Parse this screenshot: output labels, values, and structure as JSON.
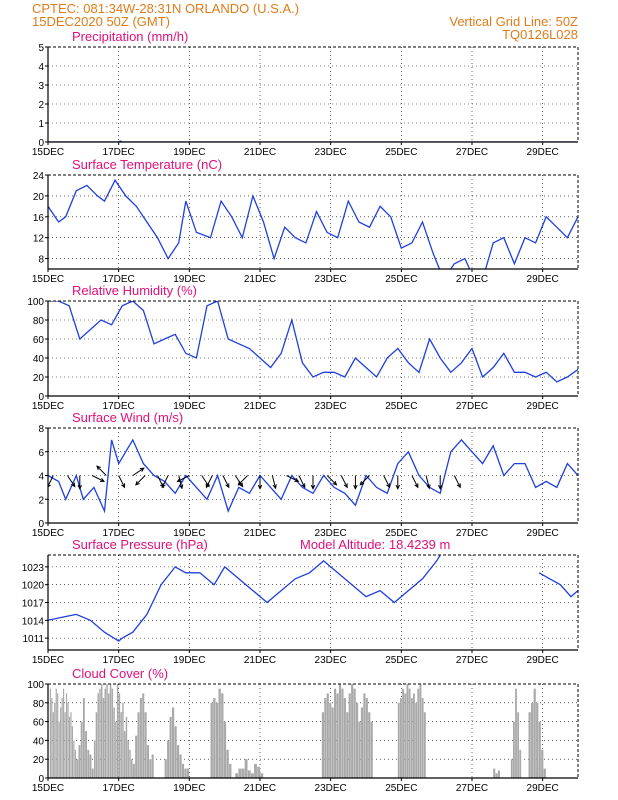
{
  "header": {
    "line1_left": "CPTEC:   081:34W-28:31N   ORLANDO (U.S.A.)",
    "line2_left": "15DEC2020 50Z (GMT)",
    "line1_right": "Vertical Grid Line: 50Z",
    "line2_right": "TQ0126L028"
  },
  "colors": {
    "header": "#e07b1a",
    "title": "#e0107a",
    "series": "#1f3fe0",
    "cloud": "#a9a9a9"
  },
  "chart_data": [
    {
      "type": "line",
      "title": "Precipitation (mm/h)",
      "ylim": [
        0,
        5
      ],
      "yticks": [
        "0",
        "1",
        "2",
        "3",
        "4",
        "5"
      ],
      "xticks": [
        "15DEC",
        "17DEC",
        "19DEC",
        "21DEC",
        "23DEC",
        "25DEC",
        "27DEC",
        "29DEC"
      ],
      "x_days": [
        0,
        15
      ],
      "series": [
        {
          "x": [
            0,
            1,
            2,
            2.05,
            2.1,
            3,
            5,
            7,
            9,
            11,
            13,
            15
          ],
          "y": [
            0,
            0,
            0,
            0.05,
            0,
            0,
            0,
            0,
            0,
            0,
            0,
            0
          ]
        }
      ]
    },
    {
      "type": "line",
      "title": "Surface Temperature (nC)",
      "ylim": [
        6,
        24
      ],
      "yticks": [
        "8",
        "12",
        "16",
        "20",
        "24"
      ],
      "xticks": [
        "15DEC",
        "17DEC",
        "19DEC",
        "21DEC",
        "23DEC",
        "25DEC",
        "27DEC",
        "29DEC"
      ],
      "series": [
        {
          "x": [
            0,
            0.3,
            0.5,
            0.8,
            1.1,
            1.4,
            1.6,
            1.9,
            2.2,
            2.5,
            2.8,
            3.1,
            3.4,
            3.7,
            3.9,
            4.2,
            4.6,
            4.9,
            5.2,
            5.5,
            5.8,
            6.1,
            6.4,
            6.7,
            7.0,
            7.3,
            7.6,
            7.9,
            8.2,
            8.5,
            8.8,
            9.1,
            9.4,
            9.7,
            10.0,
            10.3,
            10.6,
            10.9,
            11.2,
            11.5,
            11.8,
            12.0,
            12.3,
            12.6,
            12.9,
            13.2,
            13.5,
            13.8,
            14.1,
            14.4,
            14.7,
            15.0
          ],
          "y": [
            18,
            15,
            16,
            21,
            22,
            20,
            19,
            23,
            20,
            18,
            15,
            12,
            8,
            11,
            19,
            13,
            12,
            19,
            16,
            12,
            20,
            15,
            8,
            14,
            12,
            11,
            17,
            13,
            12,
            19,
            15,
            14,
            18,
            16,
            10,
            11,
            15,
            9,
            4,
            7,
            8,
            5,
            4,
            11,
            12,
            7,
            12,
            11,
            16,
            14,
            12,
            16
          ]
        }
      ]
    },
    {
      "type": "line",
      "title": "Relative Humidity (%)",
      "ylim": [
        0,
        100
      ],
      "yticks": [
        "0",
        "20",
        "40",
        "60",
        "80",
        "100"
      ],
      "xticks": [
        "15DEC",
        "17DEC",
        "19DEC",
        "21DEC",
        "23DEC",
        "25DEC",
        "27DEC",
        "29DEC"
      ],
      "series": [
        {
          "x": [
            0,
            0.3,
            0.6,
            0.9,
            1.2,
            1.5,
            1.8,
            2.1,
            2.4,
            2.7,
            3.0,
            3.3,
            3.6,
            3.9,
            4.2,
            4.5,
            4.8,
            5.1,
            5.4,
            5.7,
            6.0,
            6.3,
            6.6,
            6.9,
            7.2,
            7.5,
            7.8,
            8.1,
            8.4,
            8.7,
            9.0,
            9.3,
            9.6,
            9.9,
            10.2,
            10.5,
            10.8,
            11.1,
            11.4,
            11.7,
            12.0,
            12.3,
            12.6,
            12.9,
            13.2,
            13.5,
            13.8,
            14.1,
            14.4,
            14.7,
            15.0
          ],
          "y": [
            100,
            100,
            95,
            60,
            70,
            80,
            75,
            95,
            100,
            90,
            55,
            60,
            65,
            45,
            40,
            95,
            100,
            60,
            55,
            50,
            40,
            30,
            45,
            80,
            35,
            20,
            25,
            25,
            20,
            40,
            30,
            20,
            40,
            50,
            35,
            25,
            60,
            40,
            25,
            35,
            50,
            20,
            30,
            45,
            25,
            25,
            20,
            25,
            15,
            20,
            28
          ]
        }
      ]
    },
    {
      "type": "line",
      "title": "Surface Wind (m/s)",
      "ylim": [
        0,
        8
      ],
      "yticks": [
        "0",
        "2",
        "4",
        "6",
        "8"
      ],
      "xticks": [
        "15DEC",
        "17DEC",
        "19DEC",
        "21DEC",
        "23DEC",
        "25DEC",
        "27DEC",
        "29DEC"
      ],
      "series": [
        {
          "x": [
            0,
            0.3,
            0.5,
            0.8,
            1.0,
            1.3,
            1.6,
            1.8,
            2.0,
            2.2,
            2.4,
            2.7,
            3.0,
            3.3,
            3.6,
            3.9,
            4.2,
            4.5,
            4.8,
            5.1,
            5.4,
            5.7,
            6.0,
            6.3,
            6.6,
            6.9,
            7.2,
            7.5,
            7.8,
            8.1,
            8.4,
            8.7,
            9.0,
            9.3,
            9.6,
            9.9,
            10.2,
            10.5,
            10.8,
            11.1,
            11.4,
            11.7,
            12.0,
            12.3,
            12.6,
            12.9,
            13.2,
            13.5,
            13.8,
            14.1,
            14.4,
            14.7,
            15.0
          ],
          "y": [
            4,
            3.5,
            2,
            4,
            2,
            3,
            1,
            7,
            5,
            6,
            7,
            5,
            4,
            3.5,
            2.5,
            4,
            3,
            2,
            4,
            1,
            3,
            2.5,
            4,
            3,
            2,
            4,
            3,
            2.5,
            4,
            3,
            2.5,
            1.5,
            4,
            3,
            2.5,
            5,
            6,
            4,
            3,
            2.5,
            6,
            7,
            6,
            5,
            6.5,
            4,
            5,
            5,
            3,
            3.5,
            3,
            5,
            4
          ]
        }
      ]
    },
    {
      "type": "line",
      "title": "Surface Pressure (hPa)",
      "annotation": "Model Altitude: 18.4239  m",
      "ylim": [
        1009,
        1025
      ],
      "yticks": [
        "1011",
        "1014",
        "1017",
        "1020",
        "1023"
      ],
      "xticks": [
        "15DEC",
        "17DEC",
        "19DEC",
        "21DEC",
        "23DEC",
        "25DEC",
        "27DEC",
        "29DEC"
      ],
      "series": [
        {
          "x": [
            0,
            0.4,
            0.8,
            1.2,
            1.6,
            2.0,
            2.1,
            2.4,
            2.8,
            3.2,
            3.6,
            3.9,
            4.3,
            4.7,
            5.0,
            5.4,
            5.8,
            6.2,
            6.6,
            7.0,
            7.4,
            7.8,
            8.2,
            8.6,
            9.0,
            9.4,
            9.8,
            10.2,
            10.6,
            11.0,
            11.2
          ],
          "y": [
            1014,
            1014.5,
            1015,
            1014,
            1012,
            1010.5,
            1011,
            1012,
            1015,
            1020,
            1023,
            1022,
            1022,
            1020,
            1023,
            1021,
            1019,
            1017,
            1019,
            1021,
            1022,
            1024,
            1022,
            1020,
            1018,
            1019,
            1017,
            1019,
            1021,
            1024,
            1026
          ]
        },
        {
          "x": [
            13.9,
            14.2,
            14.5,
            14.8,
            15.0
          ],
          "y": [
            1022,
            1021,
            1020,
            1018,
            1019
          ]
        }
      ]
    },
    {
      "type": "bar",
      "title": "Cloud Cover (%)",
      "ylim": [
        0,
        100
      ],
      "yticks": [
        "0",
        "20",
        "40",
        "60",
        "80",
        "100"
      ],
      "xticks": [
        "15DEC",
        "17DEC",
        "19DEC",
        "21DEC",
        "23DEC",
        "25DEC",
        "27DEC",
        "29DEC"
      ],
      "segments": [
        {
          "start": 0.05,
          "end": 0.8,
          "values": [
            95,
            85,
            70,
            80,
            95,
            90,
            60,
            75,
            85,
            95,
            70,
            90,
            80,
            65,
            70,
            55,
            40,
            30
          ]
        },
        {
          "start": 0.8,
          "end": 1.3,
          "values": [
            20,
            35,
            60,
            85,
            50,
            30,
            25,
            10
          ]
        },
        {
          "start": 1.3,
          "end": 2.4,
          "values": [
            40,
            70,
            90,
            95,
            100,
            85,
            95,
            100,
            90,
            100,
            95,
            75,
            60,
            100,
            90,
            70,
            80,
            50,
            65,
            40,
            30,
            20
          ]
        },
        {
          "start": 2.4,
          "end": 3.0,
          "values": [
            15,
            45,
            70,
            85,
            90,
            70,
            35,
            20,
            25
          ]
        },
        {
          "start": 3.3,
          "end": 4.0,
          "values": [
            20,
            40,
            65,
            75,
            55,
            35,
            25,
            15,
            10,
            10
          ]
        },
        {
          "start": 4.6,
          "end": 5.2,
          "values": [
            80,
            85,
            80,
            95,
            90,
            60,
            30,
            15
          ]
        },
        {
          "start": 5.3,
          "end": 6.1,
          "values": [
            5,
            10,
            10,
            20,
            8,
            5,
            15,
            12,
            5
          ]
        },
        {
          "start": 7.75,
          "end": 9.2,
          "values": [
            70,
            85,
            90,
            80,
            75,
            95,
            90,
            100,
            95,
            85,
            70,
            90,
            100,
            95,
            80,
            60,
            75,
            90,
            85,
            70,
            60
          ]
        },
        {
          "start": 9.9,
          "end": 10.7,
          "values": [
            80,
            85,
            95,
            90,
            100,
            95,
            85,
            90,
            80,
            95,
            100,
            85,
            70
          ]
        },
        {
          "start": 12.6,
          "end": 12.8,
          "values": [
            10,
            5,
            8
          ]
        },
        {
          "start": 13.1,
          "end": 13.4,
          "values": [
            20,
            60,
            95,
            70,
            30
          ]
        },
        {
          "start": 13.6,
          "end": 14.1,
          "values": [
            70,
            80,
            95,
            80,
            60,
            30,
            10
          ]
        }
      ]
    }
  ]
}
